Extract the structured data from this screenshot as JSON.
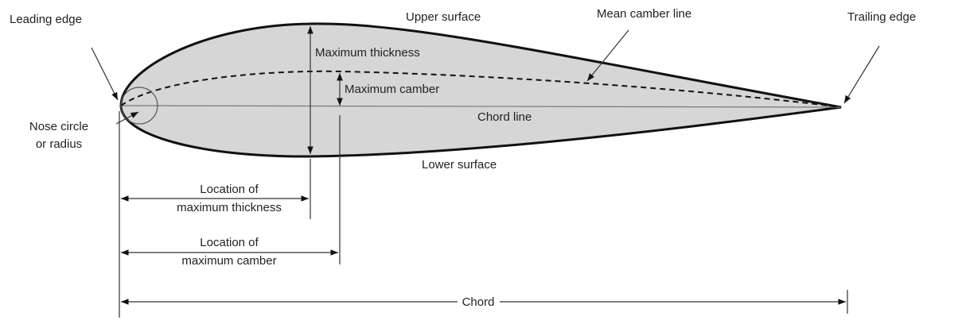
{
  "labels": {
    "leading_edge": "Leading edge",
    "upper_surface": "Upper surface",
    "mean_camber_line": "Mean camber line",
    "trailing_edge": "Trailing edge",
    "maximum_thickness": "Maximum thickness",
    "maximum_camber": "Maximum camber",
    "chord_line": "Chord line",
    "nose_circle": [
      "Nose circle",
      "or radius"
    ],
    "lower_surface": "Lower surface",
    "location_of_maximum_thickness": [
      "Location of",
      "maximum thickness"
    ],
    "location_of_maximum_camber": [
      "Location of",
      "maximum camber"
    ],
    "chord": "Chord"
  }
}
